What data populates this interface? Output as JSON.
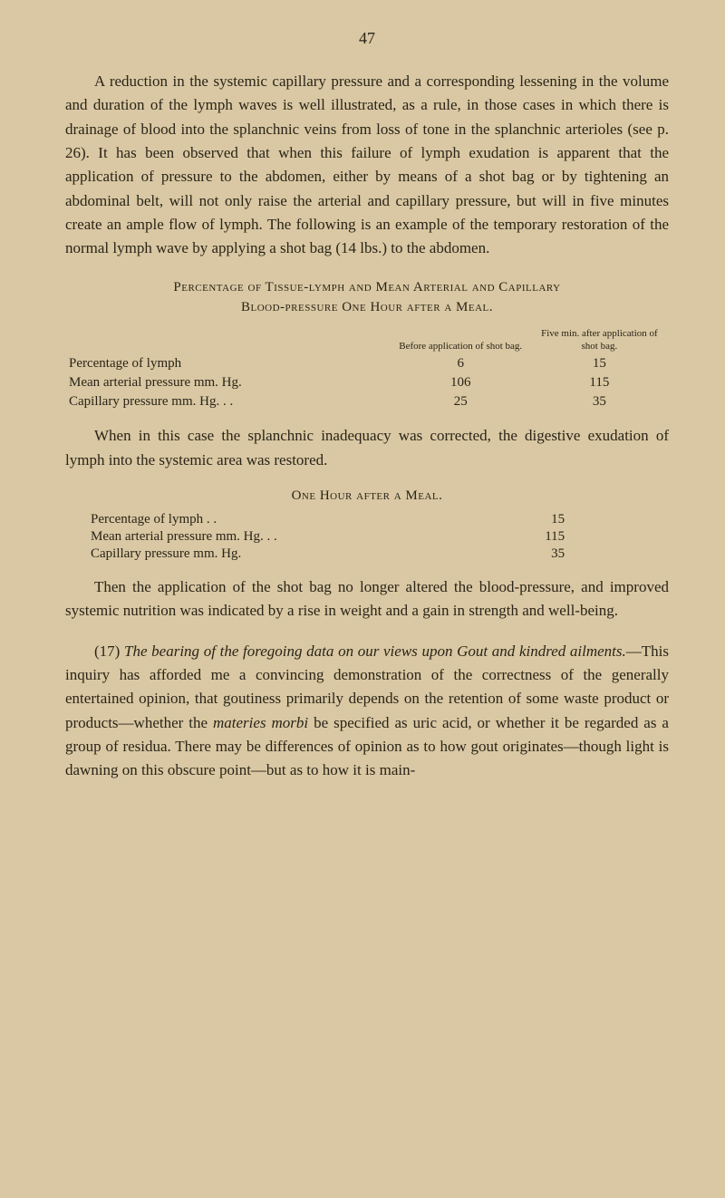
{
  "page_number": "47",
  "paragraphs": {
    "p1": "A reduction in the systemic capillary pressure and a corresponding lessening in the volume and duration of the lymph waves is well illustrated, as a rule, in those cases in which there is drainage of blood into the splanchnic veins from loss of tone in the splanchnic arterioles (see p. 26). It has been observed that when this failure of lymph exudation is apparent that the application of pressure to the abdomen, either by means of a shot bag or by tightening an abdominal belt, will not only raise the arterial and capillary pressure, but will in five minutes create an ample flow of lymph. The following is an example of the temporary restoration of the normal lymph wave by applying a shot bag (14 lbs.) to the abdomen.",
    "p2": "When in this case the splanchnic inadequacy was corrected, the digestive exudation of lymph into the systemic area was restored.",
    "p3": "Then the application of the shot bag no longer altered the blood-pressure, and improved systemic nutrition was indicated by a rise in weight and a gain in strength and well-being.",
    "p4_lead": "(17) ",
    "p4_italic": "The bearing of the foregoing data on our views upon Gout and kindred ailments.",
    "p4_rest": "—This inquiry has afforded me a convincing demonstration of the correctness of the generally entertained opinion, that goutiness primarily depends on the retention of some waste product or products—whether the materies morbi be specified as uric acid, or whether it be regarded as a group of residua. There may be differences of opinion as to how gout originates—though light is dawning on this obscure point—but as to how it is main-",
    "p4_mm1": "materies morbi"
  },
  "table1": {
    "title_line1": "Percentage of Tissue-lymph and Mean Arterial and Capillary",
    "title_line2": "Blood-pressure One Hour after a Meal.",
    "col_a_header": "Before application of shot bag.",
    "col_b_header": "Five min. after application of shot bag.",
    "rows": [
      {
        "label": "Percentage of lymph",
        "a": "6",
        "b": "15"
      },
      {
        "label": "Mean arterial pressure mm. Hg.",
        "a": "106",
        "b": "115"
      },
      {
        "label": "Capillary pressure mm. Hg. . .",
        "a": "25",
        "b": "35"
      }
    ]
  },
  "table2": {
    "title": "One Hour after a Meal.",
    "rows": [
      {
        "label": "Percentage of lymph    . .",
        "v": "15"
      },
      {
        "label": "Mean arterial pressure mm. Hg. . .",
        "v": "115"
      },
      {
        "label": "Capillary pressure mm. Hg.",
        "v": "35"
      }
    ]
  },
  "colors": {
    "background": "#d9c8a3",
    "text": "#2a2418"
  },
  "typography": {
    "body_fontsize": 17,
    "heading_fontsize": 15,
    "small_fontsize": 11,
    "font_family": "Georgia, 'Times New Roman', serif"
  }
}
